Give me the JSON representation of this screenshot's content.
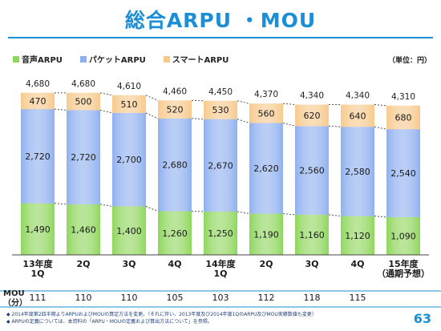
{
  "title": "総合ARPU ・MOU",
  "unit": "（単位：円）",
  "legend": [
    {
      "label": "音声ARPU",
      "color": "#8fd65c"
    },
    {
      "label": "パケットARPU",
      "color": "#8fb0ef"
    },
    {
      "label": "スマートARPU",
      "color": "#f7c98c"
    }
  ],
  "chart_data": {
    "type": "bar",
    "categories": [
      "13年度\n1Q",
      "2Q",
      "3Q",
      "4Q",
      "14年度\n1Q",
      "2Q",
      "3Q",
      "4Q",
      "15年度\n（通期予想）"
    ],
    "series": [
      {
        "name": "音声ARPU",
        "values": [
          1490,
          1460,
          1400,
          1260,
          1250,
          1190,
          1160,
          1120,
          1090
        ]
      },
      {
        "name": "パケットARPU",
        "values": [
          2720,
          2720,
          2700,
          2680,
          2670,
          2620,
          2560,
          2580,
          2540
        ]
      },
      {
        "name": "スマートARPU",
        "values": [
          470,
          500,
          510,
          520,
          530,
          560,
          620,
          640,
          680
        ]
      }
    ],
    "totals": [
      4680,
      4680,
      4610,
      4460,
      4450,
      4370,
      4340,
      4340,
      4310
    ],
    "totals_labels": [
      "4,680",
      "4,680",
      "4,610",
      "4,460",
      "4,450",
      "4,370",
      "4,340",
      "4,340",
      "4,310"
    ],
    "value_labels": {
      "voice": [
        "1,490",
        "1,460",
        "1,400",
        "1,260",
        "1,250",
        "1,190",
        "1,160",
        "1,120",
        "1,090"
      ],
      "packet": [
        "2,720",
        "2,720",
        "2,700",
        "2,680",
        "2,670",
        "2,620",
        "2,560",
        "2,580",
        "2,540"
      ],
      "smart": [
        "470",
        "500",
        "510",
        "520",
        "530",
        "560",
        "620",
        "640",
        "680"
      ]
    },
    "stacked": true
  },
  "mou": {
    "label": "MOU\n（分）",
    "values": [
      "111",
      "110",
      "110",
      "105",
      "103",
      "112",
      "118",
      "115",
      ""
    ]
  },
  "notes": [
    "◆ 2014年度第2四半期よりARPUおよびMOUの算定方法を変更。（それに伴い、2013年度及び2014年度1QのARPU及びMOU実績数値も変更）",
    "◆ ARPUの定義については、本資料の「ARPU・MOUの定義および算出方法について」を参照。"
  ],
  "page_number": "63"
}
